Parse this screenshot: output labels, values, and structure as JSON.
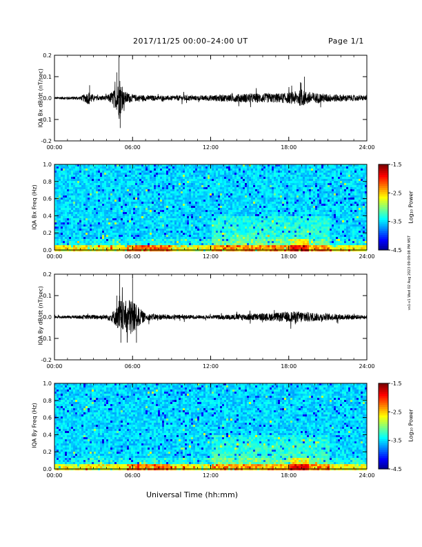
{
  "header": {
    "title": "2017/11/25  00:00–24:00 UT",
    "page": "Page 1/1"
  },
  "side_stamp": "vs1-v1 Wed 02 Aug 2023 09:09:08 PM MST",
  "x_axis": {
    "label": "Universal Time (hh:mm)",
    "ticks": [
      "00:00",
      "06:00",
      "12:00",
      "18:00",
      "24:00"
    ]
  },
  "colors": {
    "trace": "#000000",
    "background_spectral": "#1a3cff"
  },
  "chart_data": [
    {
      "type": "line",
      "ylabel": "IQA Bx dB/dt (nT/sec)",
      "ylim": [
        -0.2,
        0.2
      ],
      "y_ticks": [
        "-0.2",
        "-0.1",
        "0.0",
        "0.1",
        "0.2"
      ],
      "x_range_hours": [
        0,
        24
      ],
      "series": [
        {
          "values_hours": [
            0,
            1,
            2,
            2.7,
            3,
            4,
            4.6,
            4.9,
            5.0,
            5.1,
            5.3,
            6,
            7,
            8,
            9,
            10,
            11,
            12,
            13,
            14,
            15,
            16,
            17,
            18,
            19,
            19.3,
            20,
            21,
            22,
            23,
            24
          ],
          "amplitude": [
            0.01,
            0.012,
            0.015,
            0.06,
            0.02,
            0.02,
            0.07,
            0.13,
            0.2,
            0.14,
            0.06,
            0.03,
            0.025,
            0.02,
            0.02,
            0.025,
            0.02,
            0.025,
            0.03,
            0.035,
            0.04,
            0.04,
            0.04,
            0.045,
            0.07,
            0.06,
            0.045,
            0.035,
            0.03,
            0.025,
            0.02
          ]
        }
      ]
    },
    {
      "type": "heatmap",
      "ylabel": "IQA Bx Freq (Hz)",
      "ylim": [
        0.0,
        1.0
      ],
      "y_ticks": [
        "0.0",
        "0.2",
        "0.4",
        "0.6",
        "0.8",
        "1.0"
      ],
      "colorbar": {
        "label": "Log₁₀ Power",
        "ticks": [
          "-1.5",
          "-2.5",
          "-3.5",
          "-4.5"
        ],
        "range": [
          -4.5,
          -1.5
        ]
      }
    },
    {
      "type": "line",
      "ylabel": "IQA By dB/dt (nT/sec)",
      "ylim": [
        -0.2,
        0.2
      ],
      "y_ticks": [
        "-0.2",
        "-0.1",
        "0.0",
        "0.1",
        "0.2"
      ],
      "x_range_hours": [
        0,
        24
      ],
      "series": [
        {
          "values_hours": [
            0,
            1,
            2,
            3,
            4,
            4.5,
            4.9,
            5.0,
            5.2,
            5.7,
            6.0,
            6.3,
            6.7,
            7,
            8,
            9,
            10,
            11,
            12,
            13,
            14,
            15,
            16,
            17,
            18,
            19,
            20,
            21,
            22,
            23,
            24
          ],
          "amplitude": [
            0.01,
            0.012,
            0.015,
            0.02,
            0.02,
            0.05,
            0.1,
            0.2,
            0.12,
            0.15,
            0.18,
            0.1,
            0.06,
            0.03,
            0.025,
            0.02,
            0.02,
            0.015,
            0.015,
            0.02,
            0.025,
            0.03,
            0.03,
            0.035,
            0.045,
            0.05,
            0.035,
            0.03,
            0.025,
            0.02,
            0.015
          ]
        }
      ]
    },
    {
      "type": "heatmap",
      "ylabel": "IQA By Freq (Hz)",
      "ylim": [
        0.0,
        1.0
      ],
      "y_ticks": [
        "0.0",
        "0.2",
        "0.4",
        "0.6",
        "0.8",
        "1.0"
      ],
      "colorbar": {
        "label": "Log₁₀ Power",
        "ticks": [
          "-1.5",
          "-2.5",
          "-3.5",
          "-4.5"
        ],
        "range": [
          -4.5,
          -1.5
        ]
      }
    }
  ]
}
